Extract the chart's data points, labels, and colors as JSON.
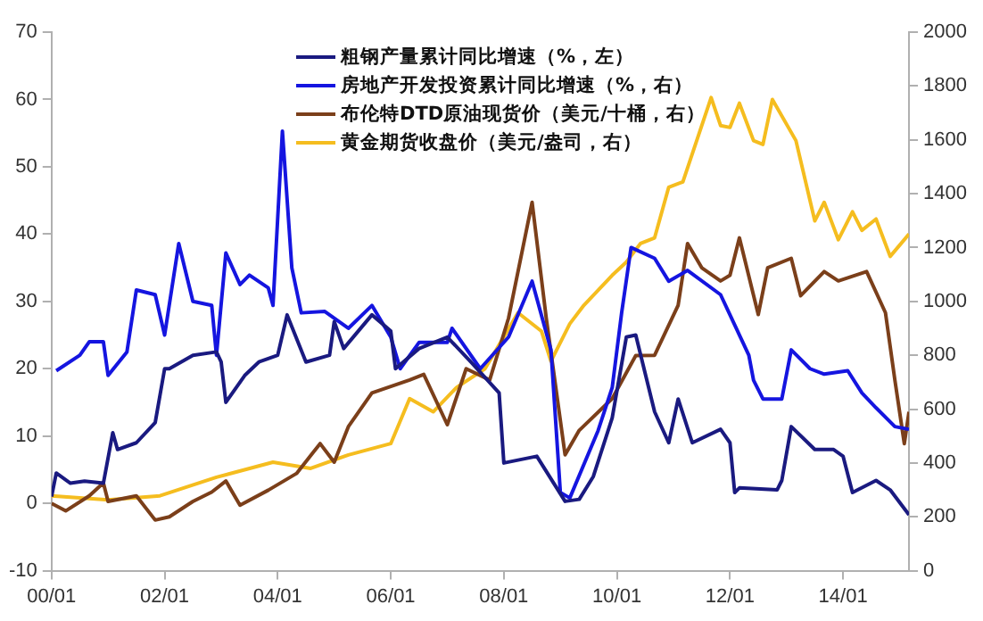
{
  "chart_data": {
    "type": "line",
    "legend": "top left",
    "grid": false,
    "marker": "none",
    "line_style": "solid",
    "xlim": [
      "2000-01",
      "2015-03"
    ],
    "xticks": [
      {
        "value": "2000-01",
        "label": "00/01"
      },
      {
        "value": "2002-01",
        "label": "02/01"
      },
      {
        "value": "2004-01",
        "label": "04/01"
      },
      {
        "value": "2006-01",
        "label": "06/01"
      },
      {
        "value": "2008-01",
        "label": "08/01"
      },
      {
        "value": "2010-01",
        "label": "10/01"
      },
      {
        "value": "2012-01",
        "label": "12/01"
      },
      {
        "value": "2014-01",
        "label": "14/01"
      }
    ],
    "ylim": [
      -10,
      70
    ],
    "yticks": [
      -10,
      0,
      10,
      20,
      30,
      40,
      50,
      60,
      70
    ],
    "y2lim": [
      0,
      2000
    ],
    "y2ticks": [
      0,
      200,
      400,
      600,
      800,
      1000,
      1200,
      1400,
      1600,
      1800,
      2000
    ],
    "series": [
      {
        "name": "粗钢产量累计同比增速（%，左）",
        "color": "#1a1a80",
        "x": [
          "2000-01",
          "2000-02",
          "2000-05",
          "2000-08",
          "2000-12",
          "2001-02",
          "2001-03",
          "2001-07",
          "2001-11",
          "2002-01",
          "2002-02",
          "2002-07",
          "2002-12",
          "2003-01",
          "2003-02",
          "2003-06",
          "2003-09",
          "2004-01",
          "2004-03",
          "2004-07",
          "2004-12",
          "2005-01",
          "2005-03",
          "2005-09",
          "2006-01",
          "2006-02",
          "2006-07",
          "2007-01",
          "2007-06",
          "2007-12",
          "2008-01",
          "2008-08",
          "2009-02",
          "2009-05",
          "2009-08",
          "2009-12",
          "2010-03",
          "2010-05",
          "2010-09",
          "2010-12",
          "2011-02",
          "2011-05",
          "2011-11",
          "2012-01",
          "2012-02",
          "2012-03",
          "2012-11",
          "2012-12",
          "2013-02",
          "2013-07",
          "2013-11",
          "2014-01",
          "2014-03",
          "2014-08",
          "2014-11",
          "2015-03"
        ],
        "values": [
          1,
          4.5,
          3,
          3.3,
          3,
          10.5,
          8,
          9,
          12,
          20,
          20,
          22,
          22.5,
          21,
          15,
          19,
          21,
          22,
          28,
          21,
          22,
          27,
          23,
          28,
          25.6,
          20,
          23,
          24.7,
          21,
          16.4,
          6,
          7,
          0.3,
          0.6,
          4,
          12.7,
          24.7,
          25,
          13.6,
          9,
          15.5,
          9,
          11,
          9,
          1.6,
          2.3,
          2,
          3.4,
          11.4,
          8,
          8,
          7,
          1.6,
          3.4,
          2,
          -1.7
        ]
      },
      {
        "name": "房地产开发投资累计同比增速（%，右）",
        "color": "#1515e0",
        "x": [
          "2000-02",
          "2000-07",
          "2000-09",
          "2000-12",
          "2001-01",
          "2001-05",
          "2001-07",
          "2001-11",
          "2002-01",
          "2002-04",
          "2002-07",
          "2002-11",
          "2002-12",
          "2003-02",
          "2003-05",
          "2003-07",
          "2003-11",
          "2003-12",
          "2004-02",
          "2004-04",
          "2004-06",
          "2004-11",
          "2005-04",
          "2005-09",
          "2006-01",
          "2006-03",
          "2006-07",
          "2007-01",
          "2007-02",
          "2007-08",
          "2008-02",
          "2008-07",
          "2008-11",
          "2009-01",
          "2009-03",
          "2009-09",
          "2009-12",
          "2010-02",
          "2010-04",
          "2010-09",
          "2010-12",
          "2011-04",
          "2011-11",
          "2012-01",
          "2012-05",
          "2012-06",
          "2012-08",
          "2012-12",
          "2013-02",
          "2013-06",
          "2013-09",
          "2014-02",
          "2014-05",
          "2014-08",
          "2014-12",
          "2015-03"
        ],
        "values": [
          19.7,
          22,
          24,
          24,
          19,
          22.5,
          31.7,
          31,
          25,
          38.6,
          30,
          29.4,
          22,
          37.2,
          32.5,
          33.9,
          32,
          29.4,
          55.3,
          35,
          28.3,
          28.5,
          26,
          29.4,
          24.7,
          20,
          23.9,
          23.9,
          26,
          20,
          24.7,
          33,
          22.8,
          1.6,
          0.8,
          10.8,
          17.2,
          28.3,
          38,
          36.4,
          33,
          34.6,
          31,
          28,
          22,
          18.3,
          15.5,
          15.5,
          22.8,
          20,
          19.2,
          19.7,
          16.4,
          14.2,
          11.4,
          11
        ]
      },
      {
        "name": "布伦特DTD原油现货价（美元/十桶，右）",
        "color": "#7b3f1a",
        "axis": "y2",
        "x": [
          "2000-01",
          "2000-04",
          "2000-09",
          "2000-12",
          "2001-01",
          "2001-07",
          "2001-11",
          "2002-02",
          "2002-07",
          "2002-11",
          "2003-02",
          "2003-05",
          "2003-11",
          "2004-05",
          "2004-10",
          "2005-01",
          "2005-04",
          "2005-09",
          "2006-05",
          "2006-08",
          "2007-01",
          "2007-05",
          "2007-10",
          "2008-02",
          "2008-07",
          "2008-10",
          "2009-02",
          "2009-05",
          "2009-12",
          "2010-05",
          "2010-09",
          "2011-02",
          "2011-04",
          "2011-07",
          "2011-11",
          "2012-01",
          "2012-03",
          "2012-07",
          "2012-09",
          "2013-02",
          "2013-04",
          "2013-09",
          "2013-12",
          "2014-06",
          "2014-10",
          "2014-12",
          "2015-02",
          "2015-03"
        ],
        "values": [
          250,
          222,
          278,
          326,
          257,
          278,
          188,
          200,
          257,
          292,
          333,
          243,
          299,
          361,
          472,
          403,
          535,
          660,
          708,
          729,
          542,
          750,
          708,
          938,
          1368,
          938,
          430,
          521,
          639,
          799,
          800,
          986,
          1215,
          1125,
          1076,
          1097,
          1236,
          951,
          1125,
          1160,
          1021,
          1111,
          1076,
          1111,
          958,
          708,
          472,
          590
        ]
      },
      {
        "name": "黄金期货收盘价（美元/盎司，右）",
        "color": "#f5bd1f",
        "axis": "y2",
        "x": [
          "2000-01",
          "2001-01",
          "2001-12",
          "2002-12",
          "2003-12",
          "2004-08",
          "2005-04",
          "2006-01",
          "2006-05",
          "2006-10",
          "2007-03",
          "2007-09",
          "2008-01",
          "2008-04",
          "2008-09",
          "2008-11",
          "2009-03",
          "2009-06",
          "2009-12",
          "2010-03",
          "2010-06",
          "2010-09",
          "2010-12",
          "2011-03",
          "2011-09",
          "2011-11",
          "2012-01",
          "2012-03",
          "2012-06",
          "2012-08",
          "2012-10",
          "2013-03",
          "2013-07",
          "2013-09",
          "2013-12",
          "2014-03",
          "2014-05",
          "2014-08",
          "2014-11",
          "2015-03"
        ],
        "values": [
          278,
          263,
          278,
          347,
          403,
          380,
          430,
          472,
          639,
          590,
          681,
          750,
          868,
          958,
          889,
          778,
          917,
          986,
          1097,
          1146,
          1215,
          1236,
          1424,
          1444,
          1757,
          1653,
          1646,
          1736,
          1597,
          1583,
          1750,
          1597,
          1299,
          1368,
          1229,
          1333,
          1264,
          1306,
          1167,
          1250
        ]
      }
    ]
  }
}
